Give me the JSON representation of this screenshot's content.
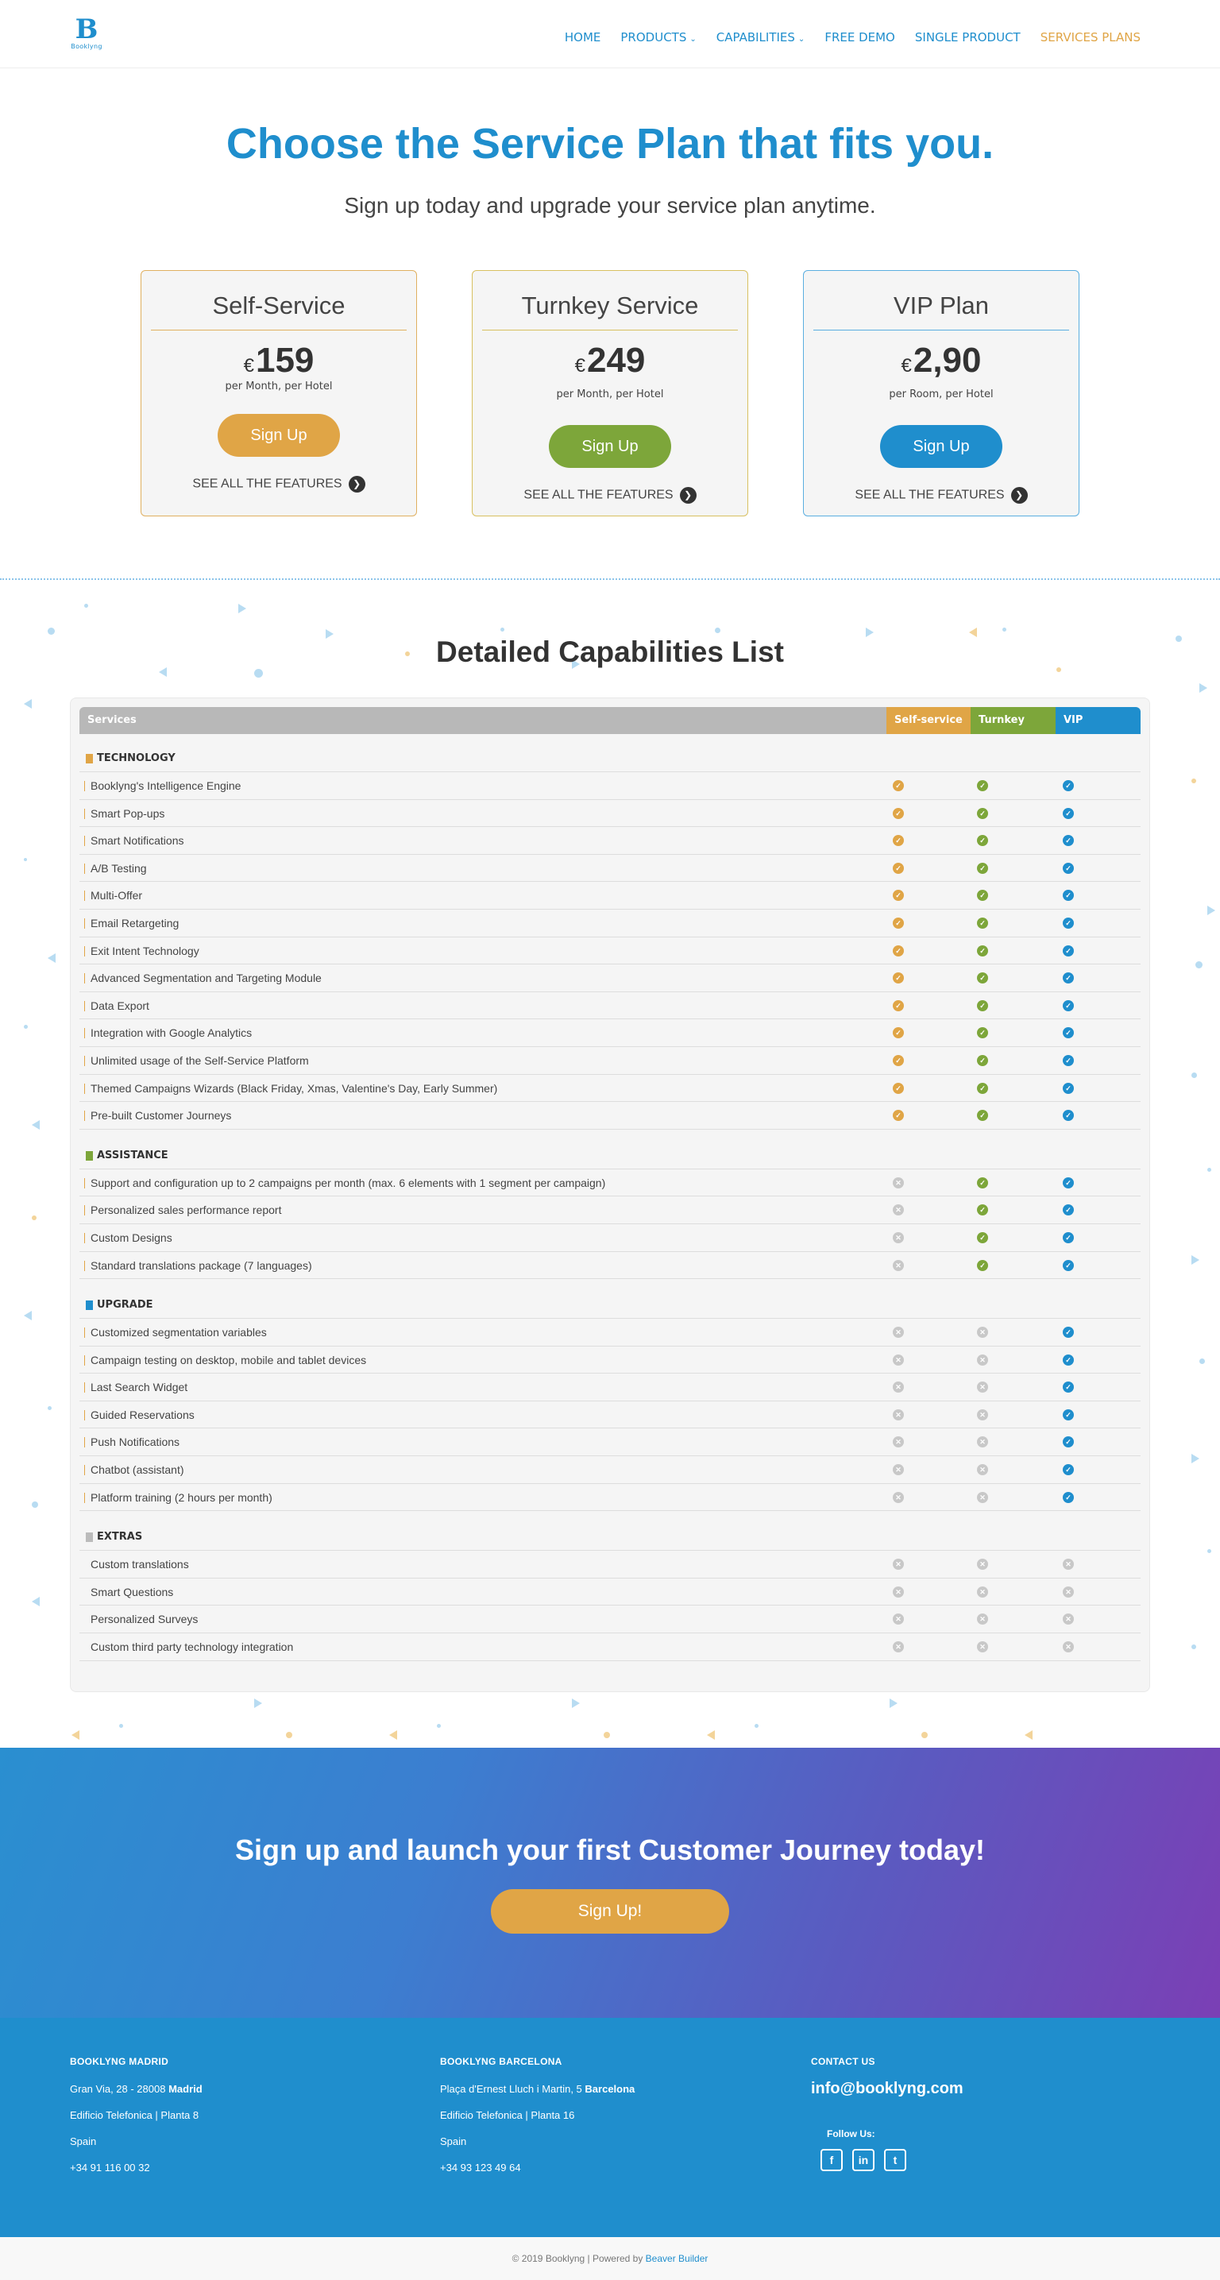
{
  "brand": {
    "logo_letter": "B",
    "logo_text": "Booklyng"
  },
  "nav": {
    "home": "HOME",
    "products": "PRODUCTS",
    "capabilities": "CAPABILITIES",
    "free_demo": "FREE DEMO",
    "single_product": "SINGLE PRODUCT",
    "services_plans": "SERVICES PLANS"
  },
  "hero": {
    "title": "Choose the Service Plan that fits you.",
    "subtitle": "Sign up today and upgrade your service plan anytime."
  },
  "plans": [
    {
      "name": "Self-Service",
      "currency": "€",
      "price": "159",
      "period": "per Month, per Hotel",
      "button": "Sign Up",
      "features_link": "SEE ALL THE FEATURES"
    },
    {
      "name": "Turnkey Service",
      "currency": "€",
      "price": "249",
      "period": "per Month, per Hotel",
      "button": "Sign Up",
      "features_link": "SEE ALL THE FEATURES"
    },
    {
      "name": "VIP Plan",
      "currency": "€",
      "price": "2,90",
      "period": "per Room, per Hotel",
      "button": "Sign Up",
      "features_link": "SEE ALL THE FEATURES"
    }
  ],
  "capabilities": {
    "title": "Detailed Capabilities List",
    "headers": {
      "services": "Services",
      "self": "Self-service",
      "turnkey": "Turnkey",
      "vip": "VIP"
    },
    "categories": [
      {
        "name": "TECHNOLOGY",
        "items": [
          "Booklyng's Intelligence Engine",
          "Smart Pop-ups",
          "Smart Notifications",
          "A/B Testing",
          "Multi-Offer",
          "Email Retargeting",
          "Exit Intent Technology",
          "Advanced Segmentation and Targeting Module",
          "Data Export",
          "Integration with Google Analytics",
          "Unlimited usage of the Self-Service Platform",
          "Themed Campaigns Wizards (Black Friday, Xmas, Valentine's Day, Early Summer)",
          "Pre-built Customer Journeys"
        ]
      },
      {
        "name": "ASSISTANCE",
        "items": [
          "Support and configuration up to 2 campaigns per month (max. 6 elements with 1 segment per campaign)",
          "Personalized sales performance report",
          "Custom Designs",
          "Standard translations package (7 languages)"
        ]
      },
      {
        "name": "UPGRADE",
        "items": [
          "Customized segmentation variables",
          "Campaign testing on desktop, mobile and tablet devices",
          "Last Search Widget",
          "Guided Reservations",
          "Push Notifications",
          "Chatbot (assistant)",
          "Platform training (2 hours per month)"
        ]
      },
      {
        "name": "EXTRAS",
        "items": [
          "Custom translations",
          "Smart Questions",
          "Personalized Surveys",
          "Custom third party technology integration"
        ]
      }
    ]
  },
  "cta": {
    "title": "Sign up and launch your first Customer Journey today!",
    "button": "Sign Up!"
  },
  "footer": {
    "madrid": {
      "title": "BOOKLYNG MADRID",
      "line1": "Gran Via, 28 - 28008 ",
      "city": "Madrid",
      "line2": "Edificio Telefonica | Planta 8",
      "country": "Spain",
      "phone": "+34 91 116 00 32"
    },
    "barcelona": {
      "title": "BOOKLYNG  BARCELONA",
      "line1": "Plaça d'Ernest Lluch i Martin, 5 ",
      "city": "Barcelona",
      "line2": "Edificio Telefonica | Planta 16",
      "country": "Spain",
      "phone": "+34 93 123 49 64"
    },
    "contact": {
      "title": "CONTACT US",
      "email": "info@booklyng.com",
      "follow": "Follow Us:"
    },
    "copyright": "© 2019 Booklyng | Powered by ",
    "powered_by": "Beaver Builder"
  },
  "colors": {
    "blue": "#1f8ecd",
    "orange": "#e0a546",
    "green": "#7da63a",
    "gray": "#c8c8c8"
  },
  "icons": {
    "check": "check-circle-icon",
    "cross": "x-circle-icon",
    "arrow": "arrow-right-circle-icon"
  }
}
